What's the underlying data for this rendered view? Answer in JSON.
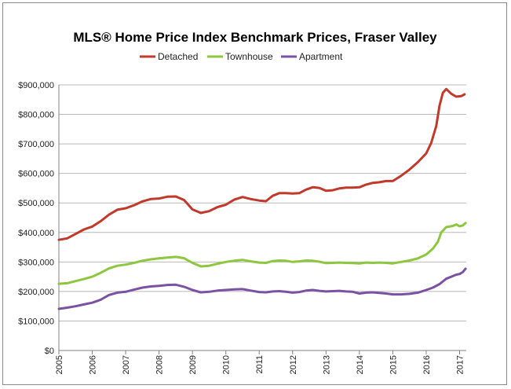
{
  "chart_data": {
    "type": "line",
    "title": "MLS® Home Price Index Benchmark Prices, Fraser Valley",
    "xlabel": "",
    "ylabel": "",
    "xlim": [
      2005,
      2017.2
    ],
    "ylim": [
      0,
      900000
    ],
    "y_ticks": [
      0,
      100000,
      200000,
      300000,
      400000,
      500000,
      600000,
      700000,
      800000,
      900000
    ],
    "y_tick_labels": [
      "$0",
      "$100,000",
      "$200,000",
      "$300,000",
      "$400,000",
      "$500,000",
      "$600,000",
      "$700,000",
      "$800,000",
      "$900,000"
    ],
    "x_ticks": [
      2005,
      2006,
      2007,
      2008,
      2009,
      2010,
      2011,
      2012,
      2013,
      2014,
      2015,
      2016,
      2017
    ],
    "x_tick_labels": [
      "2005",
      "2006",
      "2007",
      "2008",
      "2009",
      "2010",
      "2011",
      "2012",
      "2013",
      "2014",
      "2015",
      "2016",
      "2017"
    ],
    "grid": "horizontal",
    "legend": "top-center",
    "series": [
      {
        "name": "Detached",
        "color": "#c0392b",
        "points": [
          [
            2005.0,
            375000
          ],
          [
            2005.25,
            380000
          ],
          [
            2005.5,
            395000
          ],
          [
            2005.75,
            410000
          ],
          [
            2006.0,
            420000
          ],
          [
            2006.25,
            438000
          ],
          [
            2006.5,
            460000
          ],
          [
            2006.75,
            477000
          ],
          [
            2007.0,
            482000
          ],
          [
            2007.25,
            492000
          ],
          [
            2007.5,
            505000
          ],
          [
            2007.75,
            513000
          ],
          [
            2008.0,
            515000
          ],
          [
            2008.25,
            521000
          ],
          [
            2008.5,
            522000
          ],
          [
            2008.75,
            510000
          ],
          [
            2009.0,
            478000
          ],
          [
            2009.25,
            466000
          ],
          [
            2009.5,
            472000
          ],
          [
            2009.75,
            486000
          ],
          [
            2010.0,
            494000
          ],
          [
            2010.25,
            511000
          ],
          [
            2010.5,
            520000
          ],
          [
            2010.75,
            513000
          ],
          [
            2011.0,
            508000
          ],
          [
            2011.2,
            506000
          ],
          [
            2011.4,
            524000
          ],
          [
            2011.6,
            533000
          ],
          [
            2011.8,
            533000
          ],
          [
            2012.0,
            532000
          ],
          [
            2012.2,
            533000
          ],
          [
            2012.4,
            545000
          ],
          [
            2012.6,
            553000
          ],
          [
            2012.8,
            551000
          ],
          [
            2013.0,
            541000
          ],
          [
            2013.2,
            543000
          ],
          [
            2013.4,
            549000
          ],
          [
            2013.6,
            552000
          ],
          [
            2013.8,
            552000
          ],
          [
            2014.0,
            553000
          ],
          [
            2014.2,
            562000
          ],
          [
            2014.4,
            568000
          ],
          [
            2014.6,
            570000
          ],
          [
            2014.8,
            574000
          ],
          [
            2015.0,
            574000
          ],
          [
            2015.25,
            592000
          ],
          [
            2015.5,
            613000
          ],
          [
            2015.75,
            638000
          ],
          [
            2016.0,
            668000
          ],
          [
            2016.15,
            703000
          ],
          [
            2016.3,
            760000
          ],
          [
            2016.4,
            830000
          ],
          [
            2016.5,
            873000
          ],
          [
            2016.6,
            886000
          ],
          [
            2016.75,
            870000
          ],
          [
            2016.9,
            860000
          ],
          [
            2017.05,
            862000
          ],
          [
            2017.15,
            868000
          ]
        ]
      },
      {
        "name": "Townhouse",
        "color": "#8dc63f",
        "points": [
          [
            2005.0,
            226000
          ],
          [
            2005.25,
            228000
          ],
          [
            2005.5,
            235000
          ],
          [
            2005.75,
            242000
          ],
          [
            2006.0,
            250000
          ],
          [
            2006.25,
            263000
          ],
          [
            2006.5,
            278000
          ],
          [
            2006.75,
            287000
          ],
          [
            2007.0,
            291000
          ],
          [
            2007.25,
            297000
          ],
          [
            2007.5,
            304000
          ],
          [
            2007.75,
            309000
          ],
          [
            2008.0,
            312000
          ],
          [
            2008.25,
            315000
          ],
          [
            2008.5,
            317000
          ],
          [
            2008.75,
            313000
          ],
          [
            2009.0,
            297000
          ],
          [
            2009.25,
            285000
          ],
          [
            2009.5,
            287000
          ],
          [
            2009.75,
            294000
          ],
          [
            2010.0,
            300000
          ],
          [
            2010.25,
            304000
          ],
          [
            2010.5,
            307000
          ],
          [
            2010.75,
            302000
          ],
          [
            2011.0,
            298000
          ],
          [
            2011.2,
            297000
          ],
          [
            2011.4,
            303000
          ],
          [
            2011.6,
            305000
          ],
          [
            2011.8,
            304000
          ],
          [
            2012.0,
            300000
          ],
          [
            2012.2,
            302000
          ],
          [
            2012.4,
            305000
          ],
          [
            2012.6,
            304000
          ],
          [
            2012.8,
            301000
          ],
          [
            2013.0,
            296000
          ],
          [
            2013.2,
            297000
          ],
          [
            2013.4,
            298000
          ],
          [
            2013.6,
            297000
          ],
          [
            2013.8,
            296000
          ],
          [
            2014.0,
            295000
          ],
          [
            2014.2,
            298000
          ],
          [
            2014.4,
            297000
          ],
          [
            2014.6,
            298000
          ],
          [
            2014.8,
            297000
          ],
          [
            2015.0,
            295000
          ],
          [
            2015.25,
            300000
          ],
          [
            2015.5,
            305000
          ],
          [
            2015.75,
            312000
          ],
          [
            2016.0,
            325000
          ],
          [
            2016.2,
            345000
          ],
          [
            2016.35,
            368000
          ],
          [
            2016.45,
            400000
          ],
          [
            2016.6,
            418000
          ],
          [
            2016.8,
            422000
          ],
          [
            2016.9,
            427000
          ],
          [
            2017.0,
            421000
          ],
          [
            2017.1,
            424000
          ],
          [
            2017.18,
            432000
          ]
        ]
      },
      {
        "name": "Apartment",
        "color": "#7b52a3",
        "points": [
          [
            2005.0,
            141000
          ],
          [
            2005.25,
            145000
          ],
          [
            2005.5,
            150000
          ],
          [
            2005.75,
            156000
          ],
          [
            2006.0,
            162000
          ],
          [
            2006.25,
            172000
          ],
          [
            2006.5,
            188000
          ],
          [
            2006.75,
            196000
          ],
          [
            2007.0,
            199000
          ],
          [
            2007.25,
            206000
          ],
          [
            2007.5,
            213000
          ],
          [
            2007.75,
            217000
          ],
          [
            2008.0,
            219000
          ],
          [
            2008.25,
            222000
          ],
          [
            2008.5,
            223000
          ],
          [
            2008.75,
            216000
          ],
          [
            2009.0,
            205000
          ],
          [
            2009.25,
            197000
          ],
          [
            2009.5,
            199000
          ],
          [
            2009.75,
            203000
          ],
          [
            2010.0,
            205000
          ],
          [
            2010.25,
            207000
          ],
          [
            2010.5,
            208000
          ],
          [
            2010.75,
            203000
          ],
          [
            2011.0,
            198000
          ],
          [
            2011.2,
            197000
          ],
          [
            2011.4,
            200000
          ],
          [
            2011.6,
            201000
          ],
          [
            2011.8,
            199000
          ],
          [
            2012.0,
            196000
          ],
          [
            2012.2,
            198000
          ],
          [
            2012.4,
            203000
          ],
          [
            2012.6,
            205000
          ],
          [
            2012.8,
            202000
          ],
          [
            2013.0,
            200000
          ],
          [
            2013.2,
            201000
          ],
          [
            2013.4,
            202000
          ],
          [
            2013.6,
            200000
          ],
          [
            2013.8,
            199000
          ],
          [
            2014.0,
            193000
          ],
          [
            2014.2,
            196000
          ],
          [
            2014.4,
            197000
          ],
          [
            2014.6,
            195000
          ],
          [
            2014.8,
            193000
          ],
          [
            2015.0,
            190000
          ],
          [
            2015.25,
            190000
          ],
          [
            2015.5,
            192000
          ],
          [
            2015.75,
            196000
          ],
          [
            2016.0,
            205000
          ],
          [
            2016.2,
            213000
          ],
          [
            2016.4,
            225000
          ],
          [
            2016.6,
            243000
          ],
          [
            2016.75,
            250000
          ],
          [
            2016.9,
            257000
          ],
          [
            2017.0,
            259000
          ],
          [
            2017.1,
            266000
          ],
          [
            2017.18,
            277000
          ]
        ]
      }
    ]
  }
}
